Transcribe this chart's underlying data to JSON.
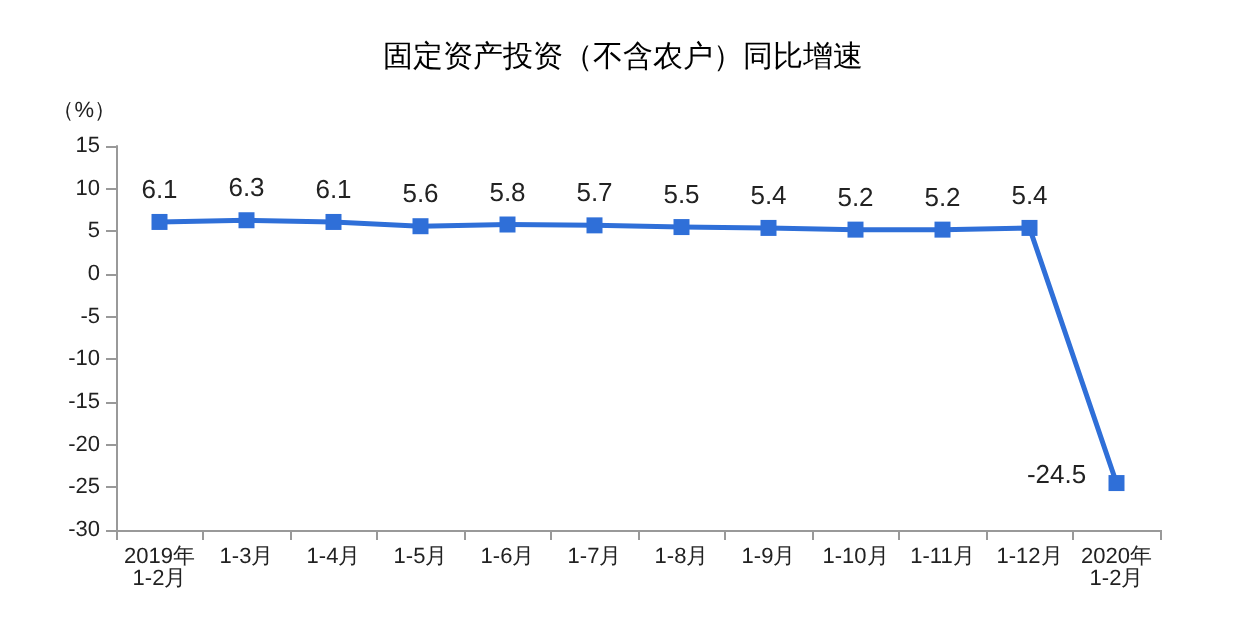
{
  "chart_data": {
    "type": "line",
    "title": "固定资产投资（不含农户）同比增速",
    "ylabel": "（%）",
    "categories": [
      "2019年\n1-2月",
      "1-3月",
      "1-4月",
      "1-5月",
      "1-6月",
      "1-7月",
      "1-8月",
      "1-9月",
      "1-10月",
      "1-11月",
      "1-12月",
      "2020年\n1-2月"
    ],
    "series": [
      {
        "color": "#2f6fd8",
        "values": [
          6.1,
          6.3,
          6.1,
          5.6,
          5.8,
          5.7,
          5.5,
          5.4,
          5.2,
          5.2,
          5.4,
          -24.5
        ]
      }
    ],
    "ylim": [
      -30,
      15
    ],
    "yticks": [
      -30,
      -25,
      -20,
      -15,
      -10,
      -5,
      0,
      5,
      10,
      15
    ],
    "marker": "square",
    "line_style": "solid",
    "data_labels": true
  }
}
